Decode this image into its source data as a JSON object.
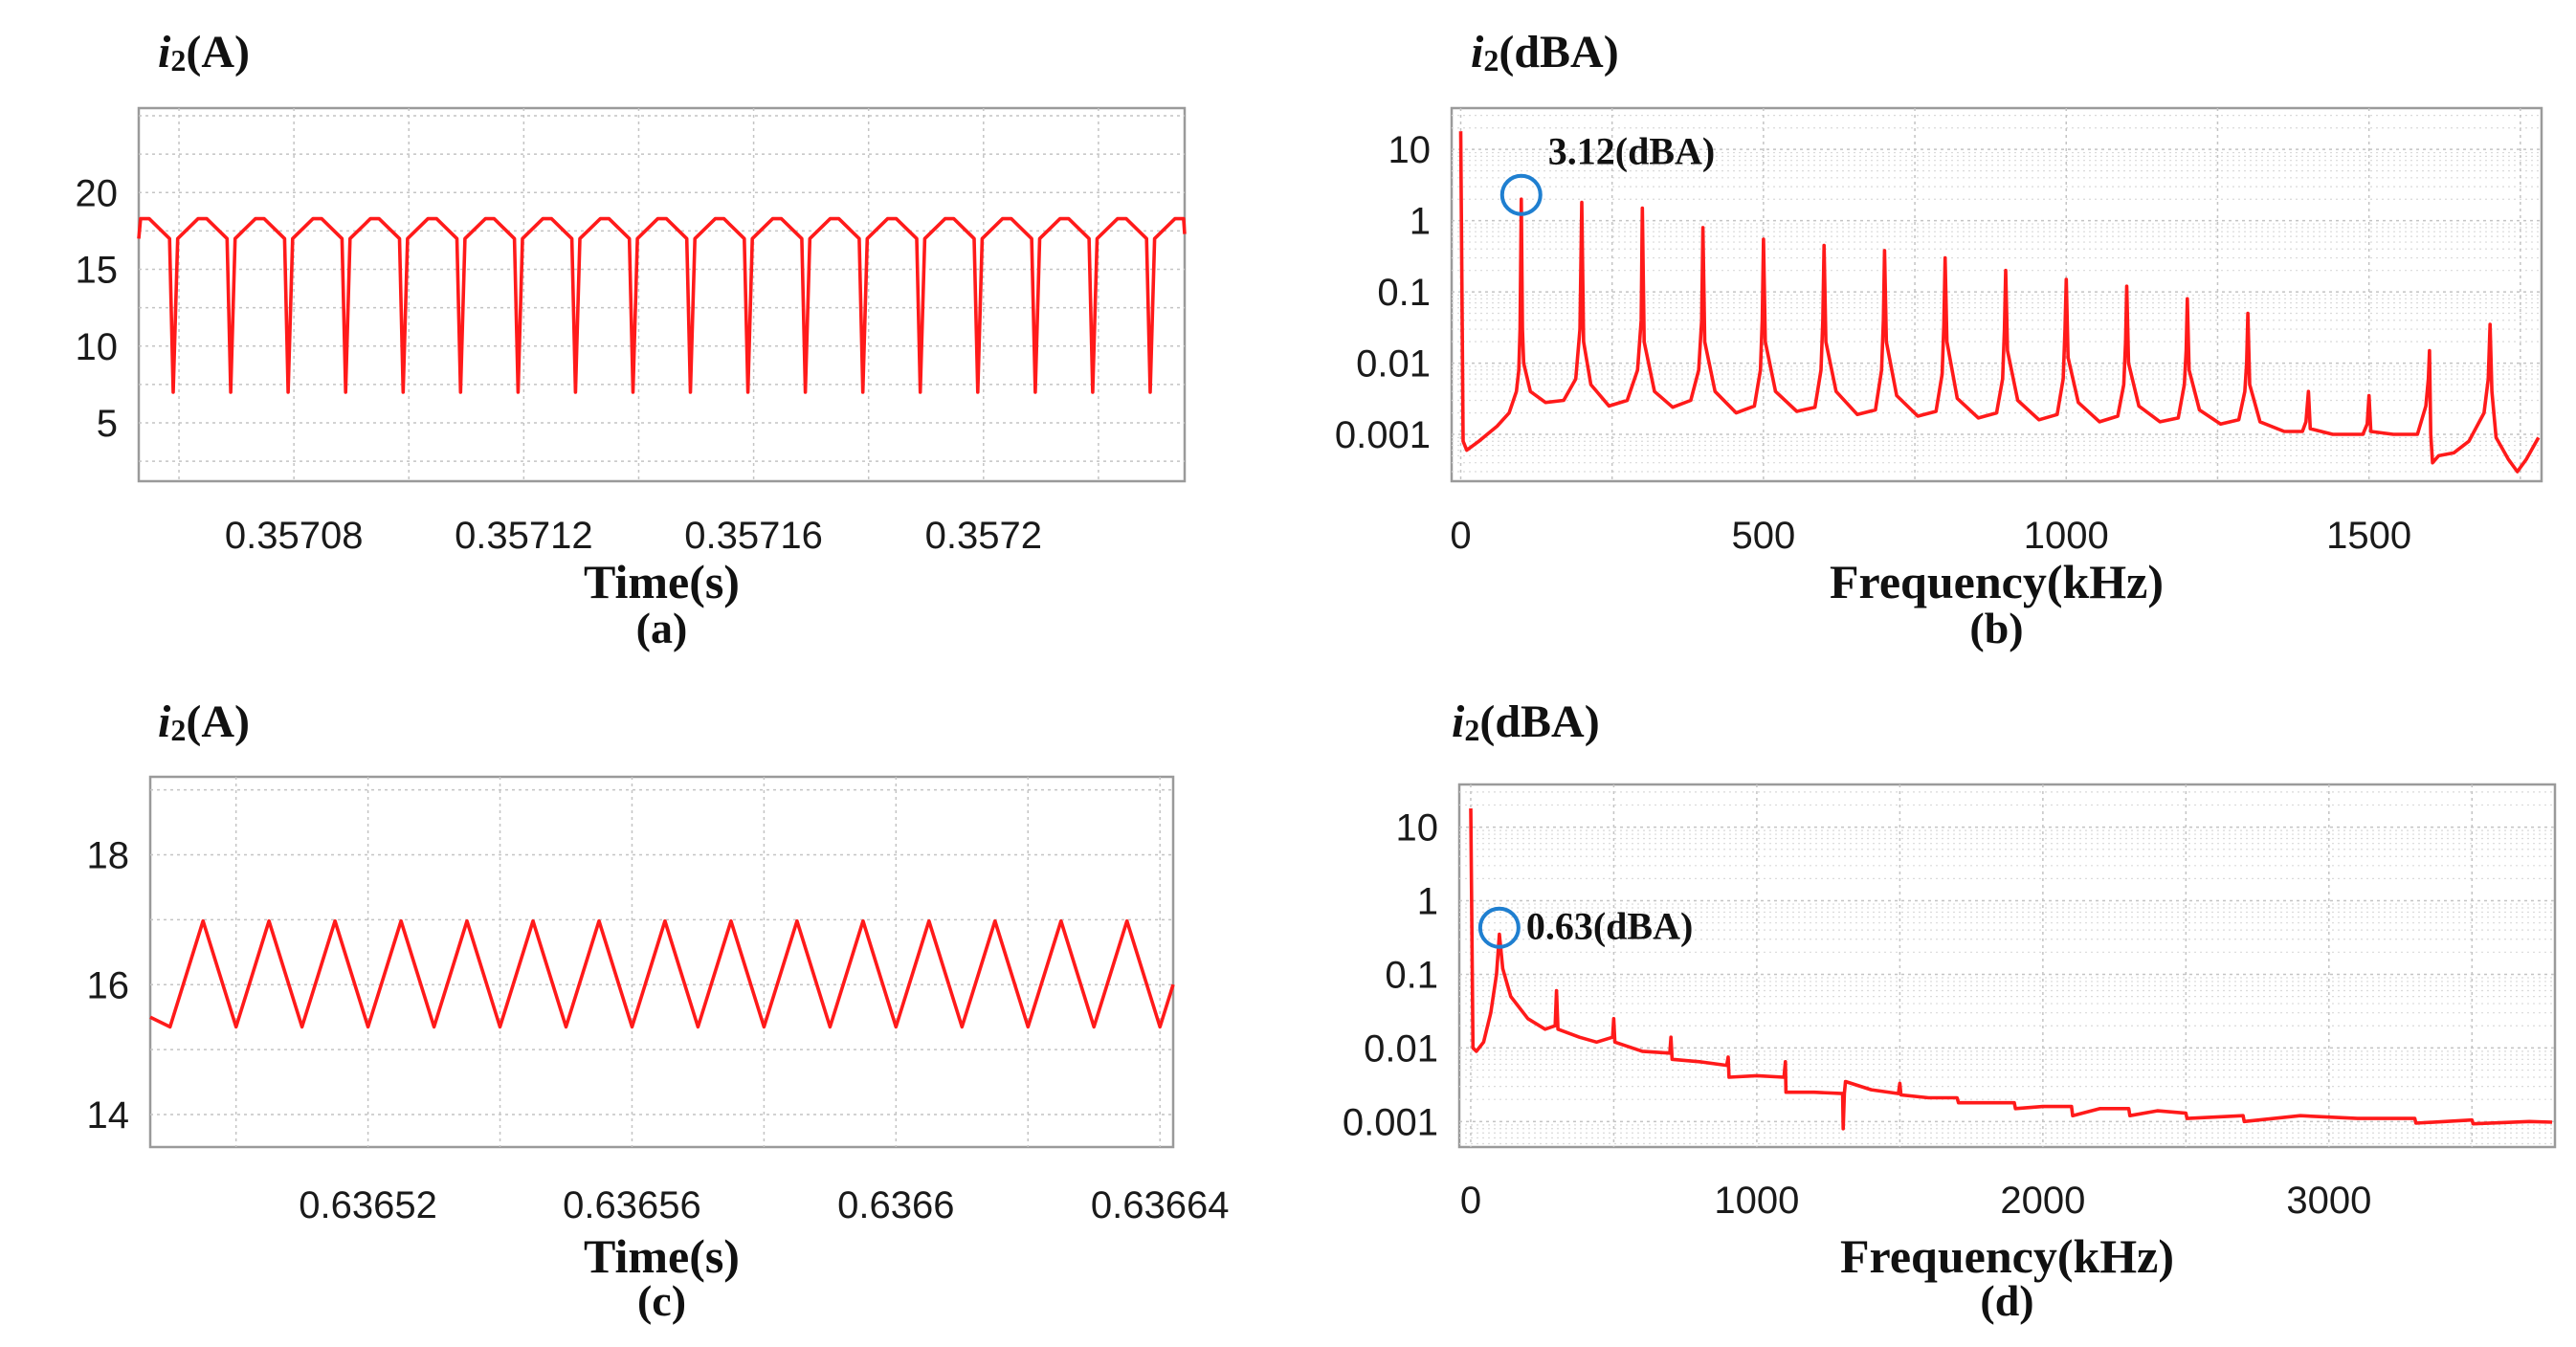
{
  "chart_data": [
    {
      "id": "a",
      "type": "line",
      "caption": "(a)",
      "ylabel_italic": "i",
      "ylabel_sub": "2",
      "ylabel_unit": "(A)",
      "xlabel": "Time(s)",
      "scale": "linear",
      "xlim": [
        0.357053,
        0.357235
      ],
      "ylim": [
        1.2,
        25.5
      ],
      "xticks": [
        0.35708,
        0.35712,
        0.35716,
        0.3572
      ],
      "xtick_labels": [
        "0.35708",
        "0.35712",
        "0.35716",
        "0.3572"
      ],
      "yticks": [
        5,
        10,
        15,
        20
      ],
      "ytick_labels": [
        "5",
        "10",
        "15",
        "20"
      ],
      "series": [
        {
          "name": "i2",
          "color": "#ff1a1a",
          "waveform": "dip",
          "period": 1e-05,
          "phase": 0.357059,
          "low": 7.0,
          "start": 17.0,
          "peak": 18.3,
          "dip_fraction": 0.14,
          "flat_fraction": 0.15
        }
      ],
      "grid": true
    },
    {
      "id": "b",
      "type": "line",
      "caption": "(b)",
      "ylabel_italic": "i",
      "ylabel_sub": "2",
      "ylabel_unit": "(dBA)",
      "xlabel": "Frequency(kHz)",
      "scale": "log",
      "xlim": [
        -15,
        1785
      ],
      "ylim": [
        0.00022,
        38
      ],
      "xticks": [
        0,
        500,
        1000,
        1500
      ],
      "xtick_labels": [
        "0",
        "500",
        "1000",
        "1500"
      ],
      "yticks": [
        0.001,
        0.01,
        0.1,
        1,
        10
      ],
      "ytick_labels": [
        "0.001",
        "0.01",
        "0.1",
        "1",
        "10"
      ],
      "annotation": {
        "text": "3.12(dBA)",
        "x": 100,
        "y": 2.3
      },
      "series": [
        {
          "name": "spectrum",
          "color": "#ff1a1a",
          "points": [
            [
              0,
              18
            ],
            [
              4,
              0.0008
            ],
            [
              10,
              0.0006
            ],
            [
              30,
              0.0008
            ],
            [
              60,
              0.0013
            ],
            [
              80,
              0.002
            ],
            [
              92,
              0.004
            ],
            [
              96,
              0.008
            ],
            [
              98,
              0.03
            ],
            [
              100,
              2.0
            ],
            [
              102,
              0.03
            ],
            [
              104,
              0.01
            ],
            [
              115,
              0.004
            ],
            [
              140,
              0.0028
            ],
            [
              170,
              0.003
            ],
            [
              190,
              0.006
            ],
            [
              197,
              0.03
            ],
            [
              200,
              1.8
            ],
            [
              203,
              0.02
            ],
            [
              215,
              0.005
            ],
            [
              245,
              0.0025
            ],
            [
              275,
              0.003
            ],
            [
              292,
              0.008
            ],
            [
              298,
              0.04
            ],
            [
              300,
              1.5
            ],
            [
              303,
              0.02
            ],
            [
              320,
              0.004
            ],
            [
              350,
              0.0024
            ],
            [
              380,
              0.003
            ],
            [
              393,
              0.008
            ],
            [
              398,
              0.04
            ],
            [
              400,
              0.8
            ],
            [
              403,
              0.02
            ],
            [
              420,
              0.004
            ],
            [
              455,
              0.002
            ],
            [
              485,
              0.0025
            ],
            [
              495,
              0.008
            ],
            [
              498,
              0.04
            ],
            [
              500,
              0.55
            ],
            [
              503,
              0.02
            ],
            [
              520,
              0.004
            ],
            [
              555,
              0.0021
            ],
            [
              585,
              0.0024
            ],
            [
              595,
              0.008
            ],
            [
              598,
              0.04
            ],
            [
              600,
              0.45
            ],
            [
              603,
              0.02
            ],
            [
              620,
              0.004
            ],
            [
              655,
              0.0019
            ],
            [
              685,
              0.0022
            ],
            [
              695,
              0.008
            ],
            [
              698,
              0.04
            ],
            [
              700,
              0.38
            ],
            [
              703,
              0.02
            ],
            [
              720,
              0.0035
            ],
            [
              755,
              0.0018
            ],
            [
              785,
              0.0021
            ],
            [
              795,
              0.007
            ],
            [
              798,
              0.035
            ],
            [
              800,
              0.3
            ],
            [
              803,
              0.02
            ],
            [
              820,
              0.0032
            ],
            [
              855,
              0.0017
            ],
            [
              885,
              0.002
            ],
            [
              895,
              0.006
            ],
            [
              898,
              0.03
            ],
            [
              900,
              0.2
            ],
            [
              903,
              0.015
            ],
            [
              920,
              0.003
            ],
            [
              955,
              0.0016
            ],
            [
              985,
              0.0019
            ],
            [
              995,
              0.006
            ],
            [
              998,
              0.03
            ],
            [
              1000,
              0.15
            ],
            [
              1003,
              0.012
            ],
            [
              1020,
              0.0028
            ],
            [
              1055,
              0.0015
            ],
            [
              1085,
              0.0018
            ],
            [
              1095,
              0.005
            ],
            [
              1098,
              0.02
            ],
            [
              1100,
              0.12
            ],
            [
              1103,
              0.01
            ],
            [
              1120,
              0.0025
            ],
            [
              1155,
              0.0015
            ],
            [
              1185,
              0.0017
            ],
            [
              1195,
              0.005
            ],
            [
              1198,
              0.015
            ],
            [
              1200,
              0.08
            ],
            [
              1203,
              0.008
            ],
            [
              1220,
              0.0022
            ],
            [
              1255,
              0.0014
            ],
            [
              1285,
              0.0016
            ],
            [
              1295,
              0.004
            ],
            [
              1298,
              0.01
            ],
            [
              1300,
              0.05
            ],
            [
              1303,
              0.005
            ],
            [
              1320,
              0.0015
            ],
            [
              1360,
              0.0011
            ],
            [
              1390,
              0.0011
            ],
            [
              1396,
              0.0015
            ],
            [
              1400,
              0.004
            ],
            [
              1403,
              0.0012
            ],
            [
              1440,
              0.001
            ],
            [
              1490,
              0.001
            ],
            [
              1497,
              0.0014
            ],
            [
              1500,
              0.0035
            ],
            [
              1503,
              0.0011
            ],
            [
              1540,
              0.001
            ],
            [
              1580,
              0.001
            ],
            [
              1594,
              0.0025
            ],
            [
              1598,
              0.006
            ],
            [
              1600,
              0.015
            ],
            [
              1602,
              0.001
            ],
            [
              1605,
              0.0004
            ],
            [
              1615,
              0.0005
            ],
            [
              1640,
              0.00055
            ],
            [
              1665,
              0.0008
            ],
            [
              1690,
              0.002
            ],
            [
              1697,
              0.006
            ],
            [
              1700,
              0.035
            ],
            [
              1703,
              0.004
            ],
            [
              1710,
              0.0009
            ],
            [
              1730,
              0.00045
            ],
            [
              1745,
              0.0003
            ],
            [
              1760,
              0.00045
            ],
            [
              1780,
              0.0009
            ]
          ]
        }
      ],
      "grid": true
    },
    {
      "id": "c",
      "type": "line",
      "caption": "(c)",
      "ylabel_italic": "i",
      "ylabel_sub": "2",
      "ylabel_unit": "(A)",
      "xlabel": "Time(s)",
      "scale": "linear",
      "xlim": [
        0.636487,
        0.636642
      ],
      "ylim": [
        13.5,
        19.2
      ],
      "xticks": [
        0.63652,
        0.63656,
        0.6366,
        0.63664
      ],
      "xtick_labels": [
        "0.63652",
        "0.63656",
        "0.6366",
        "0.63664"
      ],
      "yticks": [
        14,
        16,
        18
      ],
      "ytick_labels": [
        "14",
        "16",
        "18"
      ],
      "series": [
        {
          "name": "i2",
          "color": "#ff1a1a",
          "waveform": "triangle",
          "period": 1e-05,
          "phase": 0.63649,
          "low": 15.35,
          "high": 16.98,
          "start": 15.5
        }
      ],
      "grid": true
    },
    {
      "id": "d",
      "type": "line",
      "caption": "(d)",
      "ylabel_italic": "i",
      "ylabel_sub": "2",
      "ylabel_unit": "(dBA)",
      "xlabel": "Frequency(kHz)",
      "scale": "log",
      "xlim": [
        -40,
        3790
      ],
      "ylim": [
        0.00045,
        38
      ],
      "xticks": [
        0,
        1000,
        2000,
        3000
      ],
      "xtick_labels": [
        "0",
        "1000",
        "2000",
        "3000"
      ],
      "yticks": [
        0.001,
        0.01,
        0.1,
        1,
        10
      ],
      "ytick_labels": [
        "0.001",
        "0.01",
        "0.1",
        "1",
        "10"
      ],
      "annotation": {
        "text": "0.63(dBA)",
        "x": 100,
        "y": 0.43
      },
      "series": [
        {
          "name": "spectrum",
          "color": "#ff1a1a",
          "points": [
            [
              0,
              18
            ],
            [
              8,
              0.01
            ],
            [
              20,
              0.009
            ],
            [
              45,
              0.012
            ],
            [
              70,
              0.03
            ],
            [
              90,
              0.1
            ],
            [
              100,
              0.35
            ],
            [
              112,
              0.12
            ],
            [
              140,
              0.05
            ],
            [
              200,
              0.025
            ],
            [
              260,
              0.018
            ],
            [
              295,
              0.02
            ],
            [
              300,
              0.06
            ],
            [
              305,
              0.018
            ],
            [
              380,
              0.014
            ],
            [
              440,
              0.012
            ],
            [
              496,
              0.014
            ],
            [
              500,
              0.025
            ],
            [
              504,
              0.012
            ],
            [
              600,
              0.009
            ],
            [
              696,
              0.0085
            ],
            [
              700,
              0.014
            ],
            [
              704,
              0.007
            ],
            [
              800,
              0.0065
            ],
            [
              895,
              0.0058
            ],
            [
              900,
              0.0075
            ],
            [
              903,
              0.004
            ],
            [
              1000,
              0.0042
            ],
            [
              1095,
              0.004
            ],
            [
              1100,
              0.0065
            ],
            [
              1102,
              0.0025
            ],
            [
              1200,
              0.0025
            ],
            [
              1300,
              0.0024
            ],
            [
              1302,
              0.0008
            ],
            [
              1306,
              0.0024
            ],
            [
              1310,
              0.0035
            ],
            [
              1400,
              0.0027
            ],
            [
              1495,
              0.0024
            ],
            [
              1500,
              0.0033
            ],
            [
              1504,
              0.0023
            ],
            [
              1600,
              0.0021
            ],
            [
              1700,
              0.0021
            ],
            [
              1705,
              0.0018
            ],
            [
              1800,
              0.0018
            ],
            [
              1900,
              0.0018
            ],
            [
              1904,
              0.0015
            ],
            [
              2000,
              0.0016
            ],
            [
              2100,
              0.0016
            ],
            [
              2104,
              0.0012
            ],
            [
              2200,
              0.0015
            ],
            [
              2300,
              0.0015
            ],
            [
              2304,
              0.0012
            ],
            [
              2400,
              0.0014
            ],
            [
              2500,
              0.0013
            ],
            [
              2504,
              0.0011
            ],
            [
              2700,
              0.0012
            ],
            [
              2704,
              0.001
            ],
            [
              2900,
              0.0012
            ],
            [
              3100,
              0.0011
            ],
            [
              3300,
              0.0011
            ],
            [
              3304,
              0.00095
            ],
            [
              3500,
              0.00105
            ],
            [
              3504,
              0.00093
            ],
            [
              3700,
              0.001
            ],
            [
              3780,
              0.00098
            ]
          ]
        }
      ],
      "grid": true
    }
  ]
}
